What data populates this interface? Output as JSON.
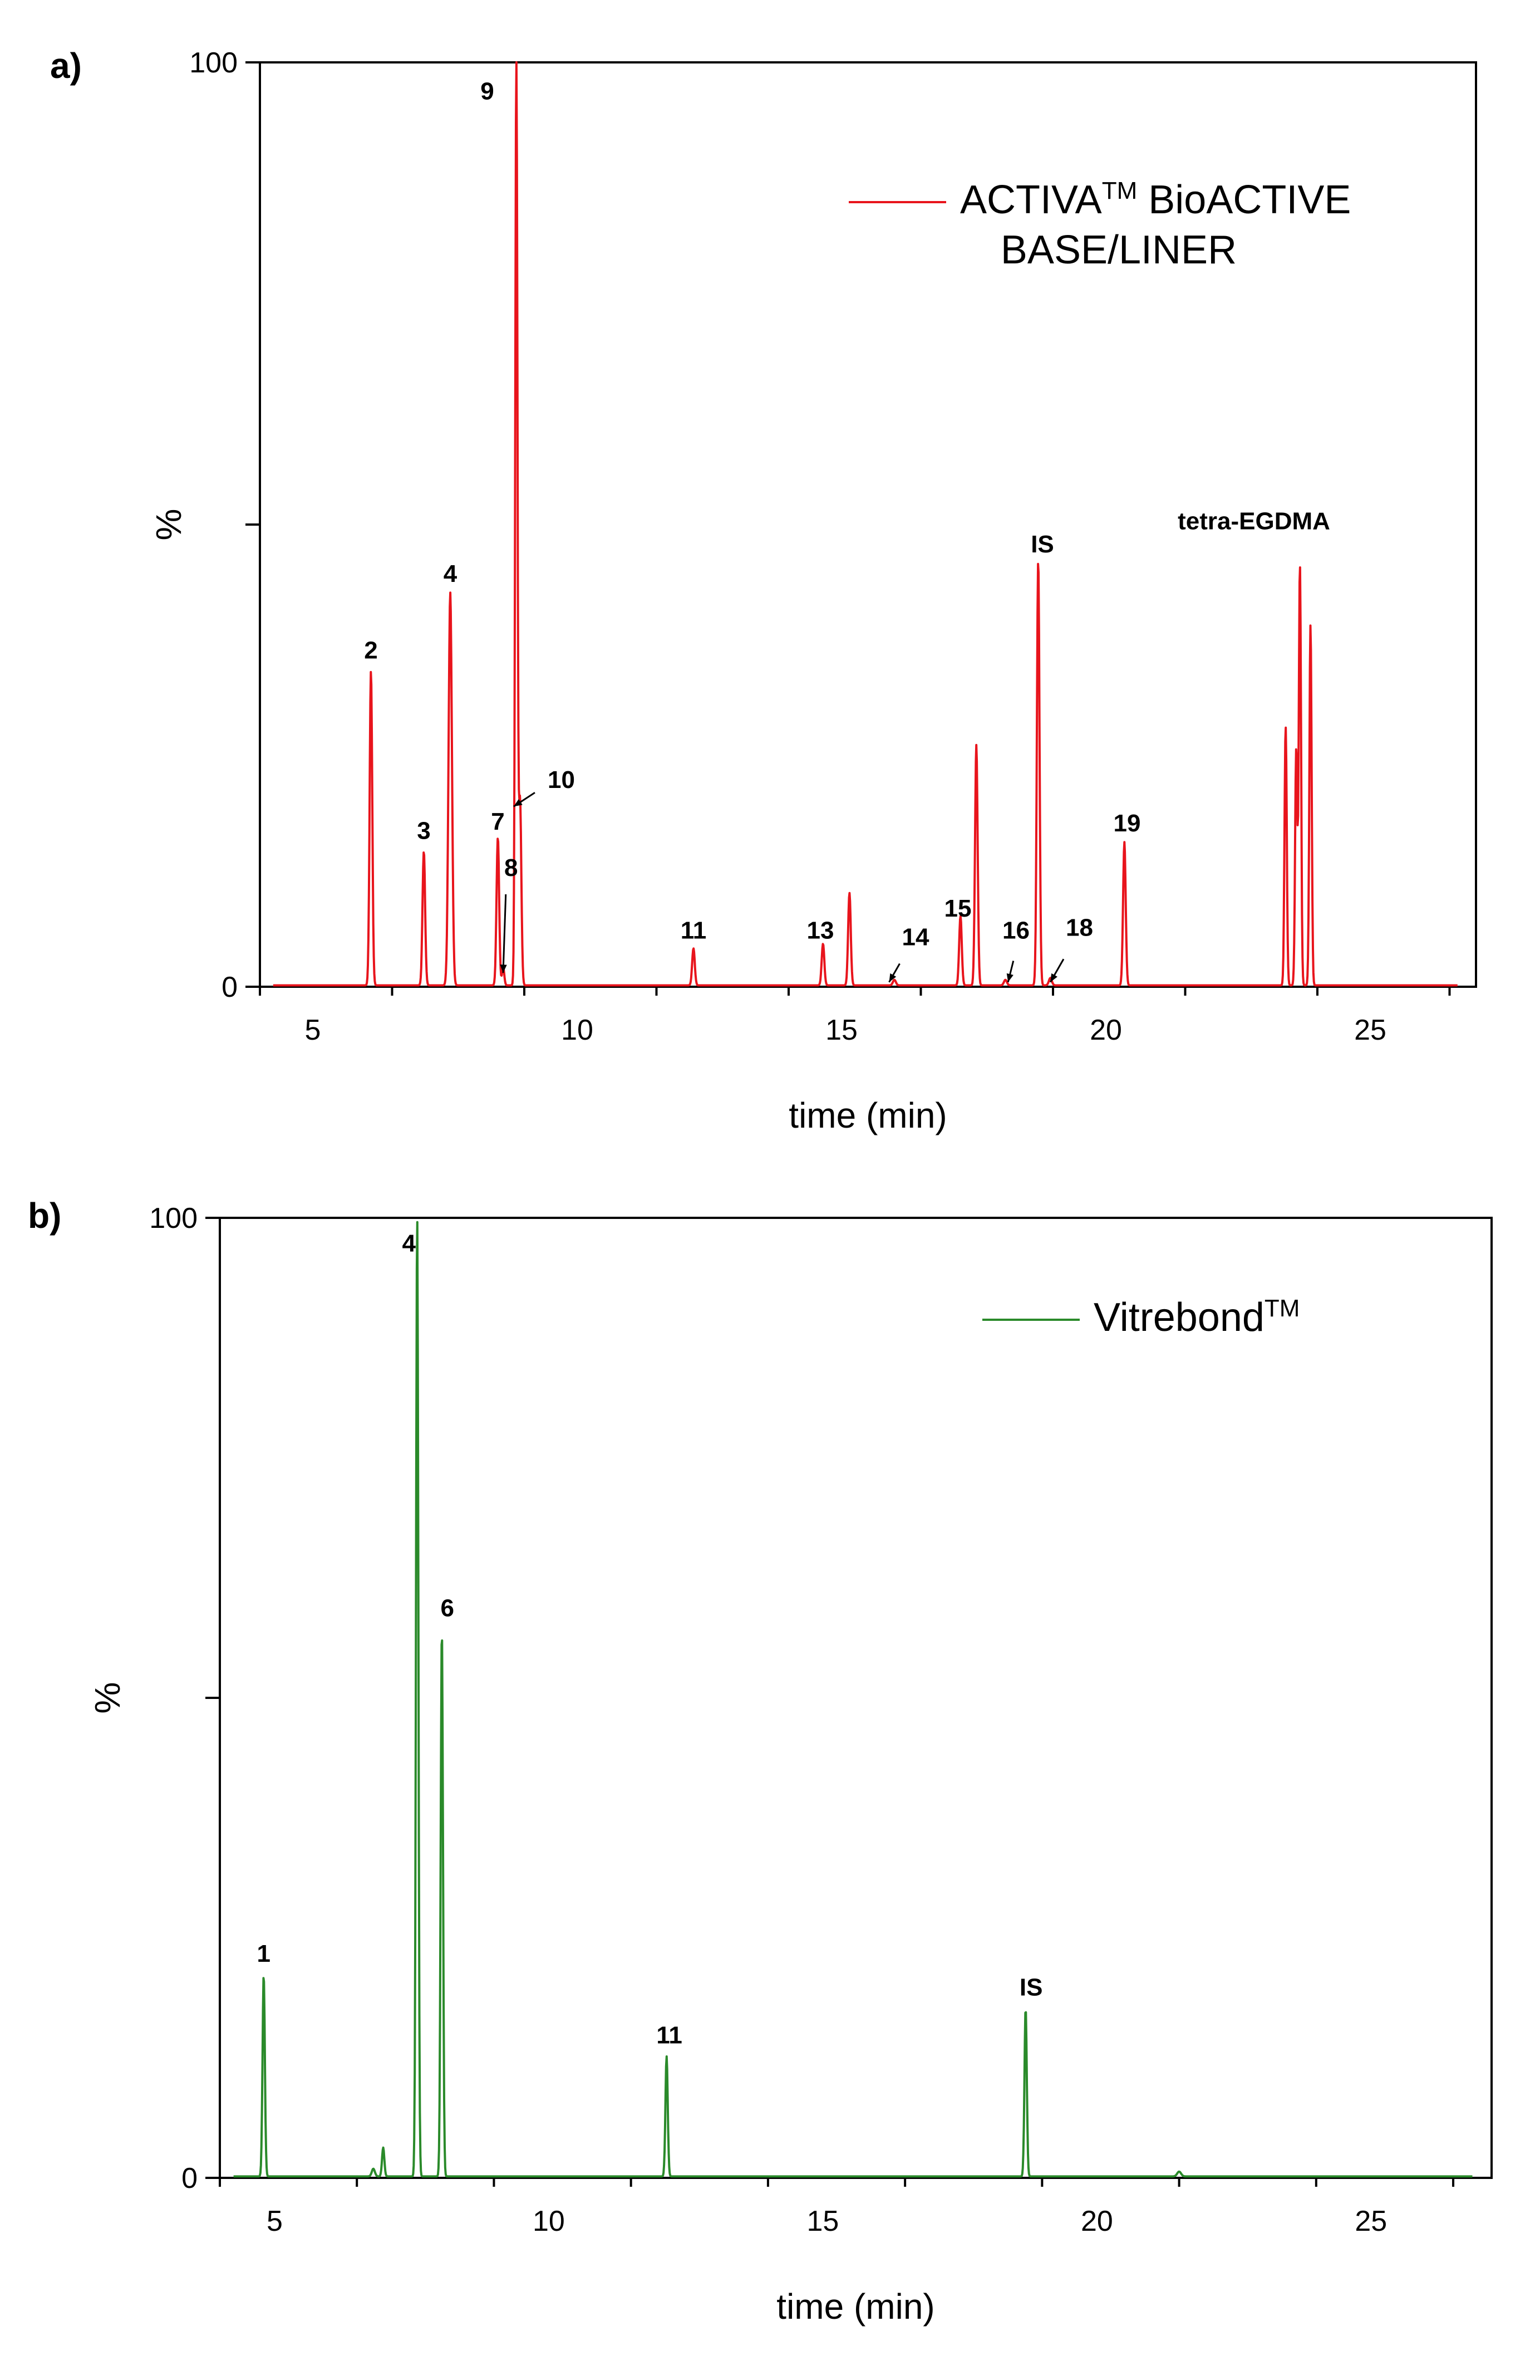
{
  "chart_data": [
    {
      "panel_label": "a)",
      "type": "line",
      "xlabel": "time (min)",
      "ylabel": "%",
      "xlim": [
        4.0,
        27.0
      ],
      "ylim": [
        0,
        100
      ],
      "xticks": [
        5,
        10,
        15,
        20,
        25
      ],
      "yticks": [
        0,
        100
      ],
      "color": "#e8141c",
      "legend": {
        "text": "ACTIVA",
        "sup": "TM",
        "text2": " BioACTIVE",
        "line2": "BASE/LINER"
      },
      "peaks": [
        {
          "x": 6.1,
          "h": 34,
          "w": 0.035
        },
        {
          "x": 7.1,
          "h": 14.5,
          "w": 0.035
        },
        {
          "x": 7.6,
          "h": 42.5,
          "w": 0.045
        },
        {
          "x": 8.5,
          "h": 16,
          "w": 0.035
        },
        {
          "x": 8.6,
          "h": 2,
          "w": 0.03
        },
        {
          "x": 8.85,
          "h": 100,
          "w": 0.03
        },
        {
          "x": 8.92,
          "h": 20,
          "w": 0.035
        },
        {
          "x": 12.2,
          "h": 4,
          "w": 0.035
        },
        {
          "x": 14.65,
          "h": 4.5,
          "w": 0.035
        },
        {
          "x": 15.15,
          "h": 10,
          "w": 0.035
        },
        {
          "x": 16.0,
          "h": 0.6,
          "w": 0.04
        },
        {
          "x": 17.25,
          "h": 7.5,
          "w": 0.035
        },
        {
          "x": 17.55,
          "h": 26,
          "w": 0.035
        },
        {
          "x": 18.1,
          "h": 0.6,
          "w": 0.04
        },
        {
          "x": 18.72,
          "h": 46,
          "w": 0.035
        },
        {
          "x": 18.95,
          "h": 0.8,
          "w": 0.04
        },
        {
          "x": 20.35,
          "h": 15.5,
          "w": 0.035
        },
        {
          "x": 23.4,
          "h": 28,
          "w": 0.03
        },
        {
          "x": 23.6,
          "h": 25.5,
          "w": 0.03
        },
        {
          "x": 23.67,
          "h": 45.5,
          "w": 0.03
        },
        {
          "x": 23.87,
          "h": 39,
          "w": 0.03
        }
      ],
      "labels": [
        {
          "text": "2",
          "x": 6.1,
          "y": 35.5
        },
        {
          "text": "3",
          "x": 7.1,
          "y": 16
        },
        {
          "text": "4",
          "x": 7.6,
          "y": 43.8
        },
        {
          "text": "7",
          "x": 8.5,
          "y": 17
        },
        {
          "text": "8",
          "x": 8.75,
          "y": 12
        },
        {
          "text": "9",
          "x": 8.3,
          "y": 96
        },
        {
          "text": "10",
          "x": 9.7,
          "y": 21.5
        },
        {
          "text": "11",
          "x": 12.2,
          "y": 5.2
        },
        {
          "text": "13",
          "x": 14.6,
          "y": 5.2
        },
        {
          "text": "14",
          "x": 16.4,
          "y": 4.5
        },
        {
          "text": "15",
          "x": 17.2,
          "y": 7.6
        },
        {
          "text": "16",
          "x": 18.3,
          "y": 5.2
        },
        {
          "text": "18",
          "x": 19.5,
          "y": 5.5
        },
        {
          "text": "19",
          "x": 20.4,
          "y": 16.8
        },
        {
          "text": "IS",
          "x": 18.8,
          "y": 47
        },
        {
          "text": "tetra-EGDMA",
          "x": 22.8,
          "y": 49.5
        }
      ],
      "arrows": [
        {
          "x1": 8.8,
          "y1": 19.5,
          "x2": 9.2,
          "y2": 21
        },
        {
          "x1": 8.6,
          "y1": 1.5,
          "x2": 8.65,
          "y2": 10
        },
        {
          "x1": 15.9,
          "y1": 0.5,
          "x2": 16.1,
          "y2": 2.5
        },
        {
          "x1": 18.15,
          "y1": 0.5,
          "x2": 18.25,
          "y2": 2.8
        },
        {
          "x1": 18.95,
          "y1": 0.5,
          "x2": 19.2,
          "y2": 3.0
        }
      ]
    },
    {
      "panel_label": "b)",
      "type": "line",
      "xlabel": "time (min)",
      "ylabel": "%",
      "xlim": [
        4.0,
        27.2
      ],
      "ylim": [
        0,
        100
      ],
      "xticks": [
        5,
        10,
        15,
        20,
        25
      ],
      "yticks": [
        0,
        100
      ],
      "color": "#2a8a2a",
      "legend": {
        "text": "Vitrebond",
        "sup": "TM",
        "text2": "",
        "line2": ""
      },
      "peaks": [
        {
          "x": 4.8,
          "h": 21,
          "w": 0.03
        },
        {
          "x": 6.8,
          "h": 0.8,
          "w": 0.04
        },
        {
          "x": 6.98,
          "h": 3,
          "w": 0.03
        },
        {
          "x": 7.6,
          "h": 100,
          "w": 0.03
        },
        {
          "x": 8.05,
          "h": 57,
          "w": 0.03
        },
        {
          "x": 12.15,
          "h": 12.5,
          "w": 0.03
        },
        {
          "x": 18.7,
          "h": 17.5,
          "w": 0.03
        },
        {
          "x": 21.5,
          "h": 0.5,
          "w": 0.05
        }
      ],
      "labels": [
        {
          "text": "1",
          "x": 4.8,
          "y": 22.5
        },
        {
          "text": "4",
          "x": 7.45,
          "y": 96.5
        },
        {
          "text": "6",
          "x": 8.15,
          "y": 58.5
        },
        {
          "text": "11",
          "x": 12.2,
          "y": 14
        },
        {
          "text": "IS",
          "x": 18.8,
          "y": 19
        }
      ],
      "arrows": []
    }
  ]
}
